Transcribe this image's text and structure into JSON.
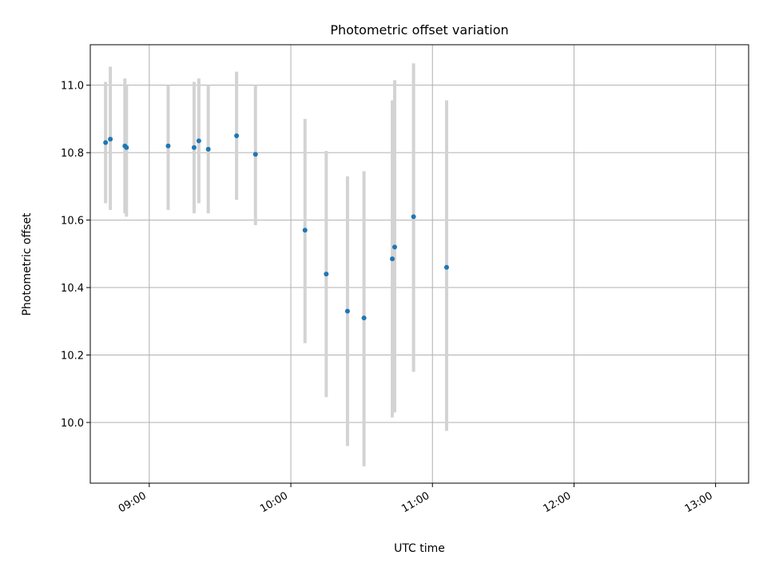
{
  "chart_data": {
    "type": "scatter",
    "title": "Photometric offset variation",
    "xlabel": "UTC time",
    "ylabel": "Photometric offset",
    "grid": true,
    "legend": "none",
    "xlim": [
      "08:35",
      "13:14"
    ],
    "ylim": [
      9.82,
      11.12
    ],
    "x_ticks": [
      "09:00",
      "10:00",
      "11:00",
      "12:00",
      "13:00"
    ],
    "y_ticks": [
      "10.0",
      "10.2",
      "10.4",
      "10.6",
      "10.8",
      "11.0"
    ],
    "y_tick_values": [
      10.0,
      10.2,
      10.4,
      10.6,
      10.8,
      11.0
    ],
    "colors": {
      "point": "#1f77b4",
      "errorbar": "#d3d3d3"
    },
    "series": [
      {
        "points": [
          {
            "x": "08:42",
            "y": 10.83,
            "ylow": 10.65,
            "yhigh": 11.01
          },
          {
            "x": "08:43",
            "y": 10.84,
            "ylow": 10.63,
            "yhigh": 11.055
          },
          {
            "x": "08:50",
            "y": 10.82,
            "ylow": 10.62,
            "yhigh": 11.02
          },
          {
            "x": "08:50",
            "y": 10.815,
            "ylow": 10.61,
            "yhigh": 11.0
          },
          {
            "x": "09:08",
            "y": 10.82,
            "ylow": 10.63,
            "yhigh": 11.0
          },
          {
            "x": "09:19",
            "y": 10.815,
            "ylow": 10.62,
            "yhigh": 11.01
          },
          {
            "x": "09:21",
            "y": 10.835,
            "ylow": 10.65,
            "yhigh": 11.02
          },
          {
            "x": "09:25",
            "y": 10.81,
            "ylow": 10.62,
            "yhigh": 11.0
          },
          {
            "x": "09:37",
            "y": 10.85,
            "ylow": 10.66,
            "yhigh": 11.04
          },
          {
            "x": "09:45",
            "y": 10.795,
            "ylow": 10.585,
            "yhigh": 11.0
          },
          {
            "x": "10:06",
            "y": 10.57,
            "ylow": 10.235,
            "yhigh": 10.9
          },
          {
            "x": "10:15",
            "y": 10.44,
            "ylow": 10.075,
            "yhigh": 10.805
          },
          {
            "x": "10:24",
            "y": 10.33,
            "ylow": 9.93,
            "yhigh": 10.73
          },
          {
            "x": "10:31",
            "y": 10.31,
            "ylow": 9.87,
            "yhigh": 10.745
          },
          {
            "x": "10:43",
            "y": 10.485,
            "ylow": 10.015,
            "yhigh": 10.955
          },
          {
            "x": "10:44",
            "y": 10.52,
            "ylow": 10.03,
            "yhigh": 11.015
          },
          {
            "x": "10:52",
            "y": 10.61,
            "ylow": 10.15,
            "yhigh": 11.065
          },
          {
            "x": "11:06",
            "y": 10.46,
            "ylow": 9.975,
            "yhigh": 10.955
          }
        ]
      }
    ]
  }
}
